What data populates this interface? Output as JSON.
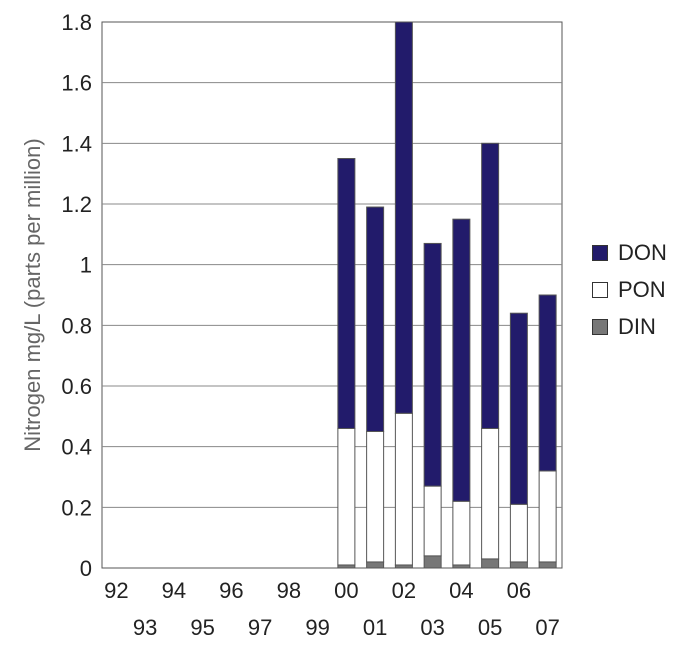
{
  "chart_data": {
    "type": "bar",
    "stacked": true,
    "ylabel": "Nitrogen mg/L (parts per million)",
    "xlabel": "",
    "ylim": [
      0,
      1.8
    ],
    "yticks": [
      "0",
      "0.2",
      "0.4",
      "0.6",
      "0.8",
      "1",
      "1.2",
      "1.4",
      "1.6",
      "1.8"
    ],
    "categories": [
      "92",
      "93",
      "94",
      "95",
      "96",
      "97",
      "98",
      "99",
      "00",
      "01",
      "02",
      "03",
      "04",
      "05",
      "06",
      "07"
    ],
    "grid": "horizontal",
    "legend_position": "right",
    "series": [
      {
        "name": "DIN",
        "color": "#777777",
        "values": [
          null,
          null,
          null,
          null,
          null,
          null,
          null,
          null,
          0.01,
          0.02,
          0.01,
          0.04,
          0.01,
          0.03,
          0.02,
          0.02
        ]
      },
      {
        "name": "PON",
        "color": "#ffffff",
        "values": [
          null,
          null,
          null,
          null,
          null,
          null,
          null,
          null,
          0.45,
          0.43,
          0.5,
          0.23,
          0.21,
          0.43,
          0.19,
          0.3
        ]
      },
      {
        "name": "DON",
        "color": "#221b6b",
        "values": [
          null,
          null,
          null,
          null,
          null,
          null,
          null,
          null,
          0.89,
          0.74,
          1.29,
          0.8,
          0.93,
          0.94,
          0.63,
          0.58
        ]
      }
    ]
  },
  "legend": [
    {
      "label": "DON",
      "color": "#221b6b"
    },
    {
      "label": "PON",
      "color": "#ffffff"
    },
    {
      "label": "DIN",
      "color": "#777777"
    }
  ]
}
